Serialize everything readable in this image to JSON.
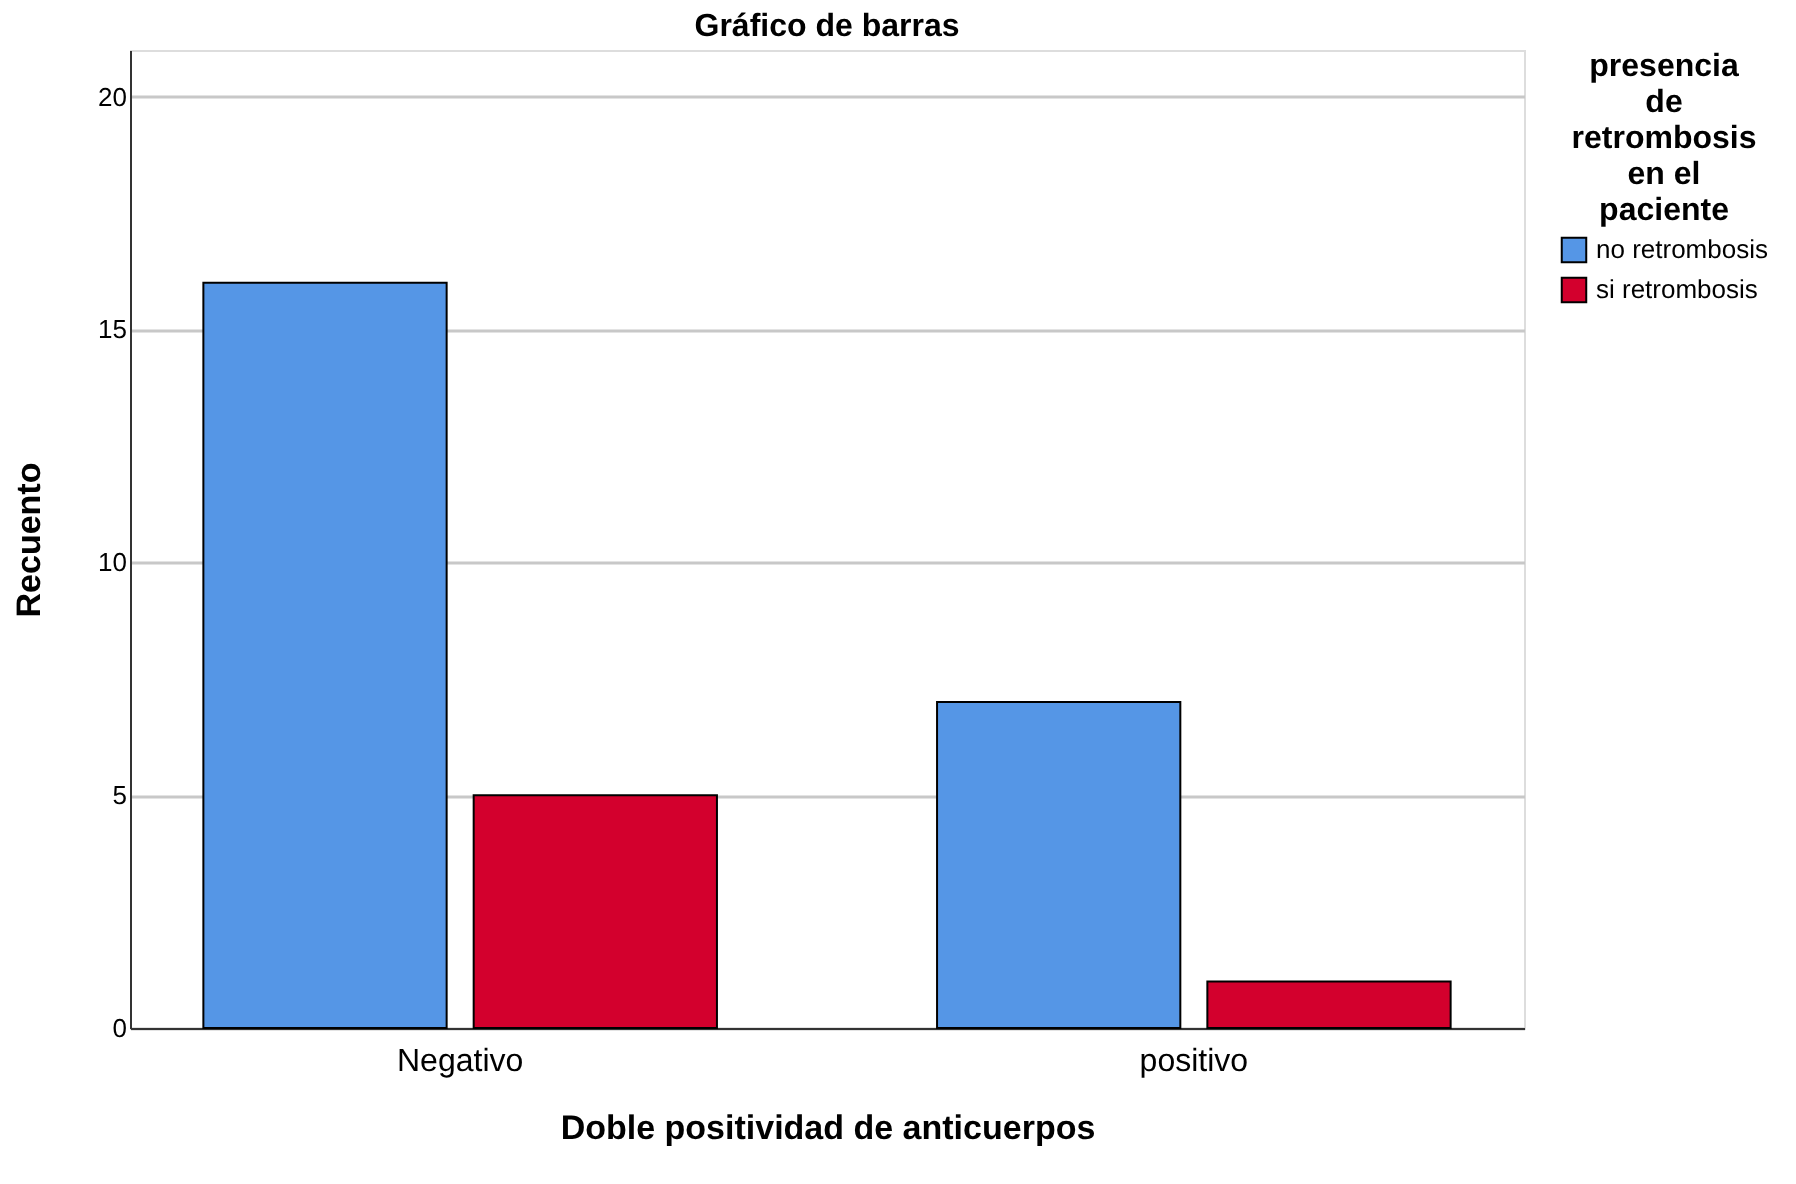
{
  "chart_data": {
    "type": "bar",
    "title": "Gráfico de barras",
    "xlabel": "Doble positividad de anticuerpos",
    "ylabel": "Recuento",
    "legend_title": "presencia de retrombosis en el paciente",
    "categories": [
      "Negativo",
      "positivo"
    ],
    "series": [
      {
        "name": "no retrombosis",
        "color": "#5596e6",
        "values": [
          16,
          7
        ]
      },
      {
        "name": "si retrombosis",
        "color": "#d3002d",
        "values": [
          5,
          1
        ]
      }
    ],
    "ylim": [
      0,
      21
    ],
    "yticks": [
      0,
      5,
      10,
      15,
      20
    ],
    "grid": "y",
    "legend": "right"
  }
}
